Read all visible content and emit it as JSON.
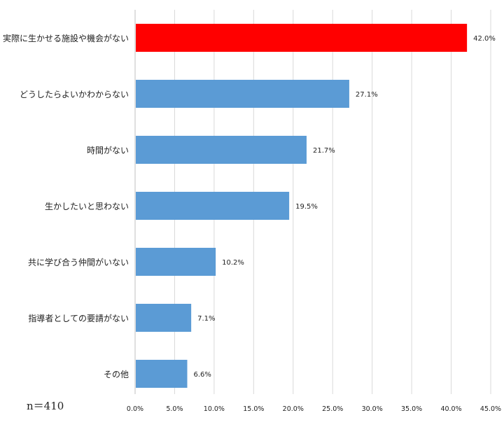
{
  "chart_data": {
    "type": "bar",
    "orientation": "horizontal",
    "categories": [
      "実際に生かせる施設や機会がない",
      "どうしたらよいかわからない",
      "時間がない",
      "生かしたいと思わない",
      "共に学び合う仲間がいない",
      "指導者としての要請がない",
      "その他"
    ],
    "values": [
      42.0,
      27.1,
      21.7,
      19.5,
      10.2,
      7.1,
      6.6
    ],
    "data_labels": [
      "42.0%",
      "27.1%",
      "21.7%",
      "19.5%",
      "10.2%",
      "7.1%",
      "6.6%"
    ],
    "xlim": [
      0,
      45
    ],
    "x_ticks": [
      0,
      5,
      10,
      15,
      20,
      25,
      30,
      35,
      40,
      45
    ],
    "x_tick_labels": [
      "0.0%",
      "5.0%",
      "10.0%",
      "15.0%",
      "20.0%",
      "25.0%",
      "30.0%",
      "35.0%",
      "40.0%",
      "45.0%"
    ],
    "grid": "vertical",
    "colors": {
      "default": "#5b9bd5",
      "highlight": "#ff0000"
    },
    "highlight_index": 0,
    "title": "",
    "xlabel": "",
    "ylabel": ""
  },
  "note": "n＝410"
}
